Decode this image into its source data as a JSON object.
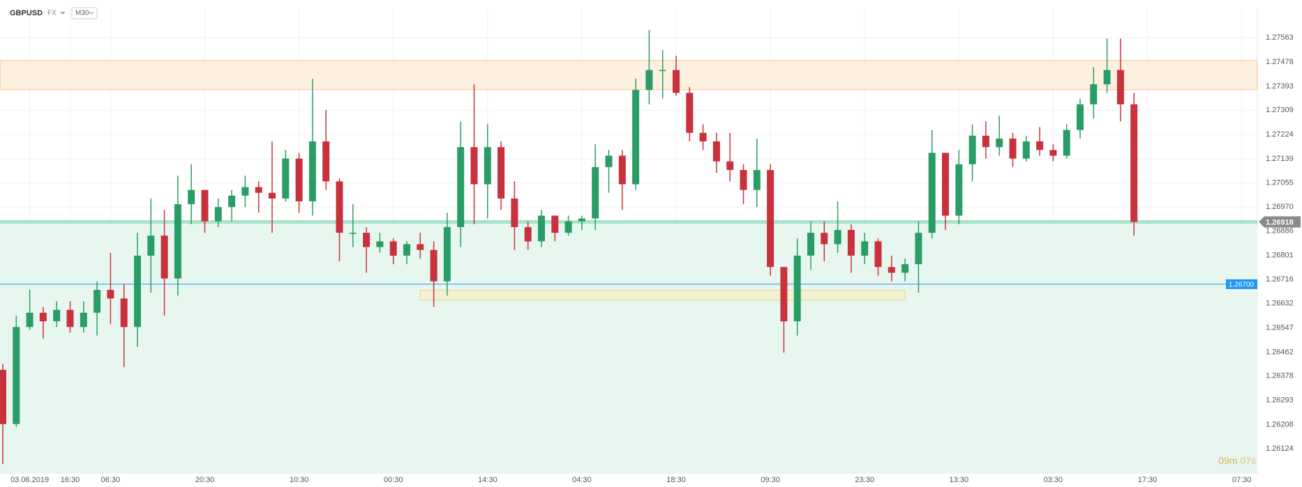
{
  "chart_data": {
    "type": "candlestick",
    "symbol": "GBPUSD",
    "market": "FX",
    "timeframe": "M30",
    "categories": [
      null,
      null,
      "03.06.2019",
      null,
      null,
      "16:30",
      null,
      null,
      "06:30",
      null,
      null,
      null,
      null,
      null,
      null,
      "20:30",
      null,
      null,
      null,
      null,
      null,
      null,
      "10:30",
      null,
      null,
      null,
      null,
      null,
      null,
      "00:30",
      null,
      null,
      null,
      null,
      null,
      null,
      "14:30",
      null,
      null,
      null,
      null,
      null,
      null,
      "04:30",
      null,
      null,
      null,
      null,
      null,
      null,
      "18:30",
      null,
      null,
      null,
      null,
      null,
      null,
      "09:30",
      null,
      null,
      null,
      null,
      null,
      null,
      "23:30",
      null,
      null,
      null,
      null,
      null,
      null,
      "13:30",
      null,
      null,
      null,
      null,
      null,
      null,
      "03:30",
      null,
      null,
      null,
      null,
      null,
      null,
      "17:30",
      null,
      null,
      null,
      null,
      null,
      null,
      "07:30"
    ],
    "open": [
      1.264,
      1.2621,
      1.2655,
      1.266,
      1.2657,
      1.2661,
      1.2655,
      1.266,
      1.2668,
      1.2665,
      1.2655,
      1.268,
      1.2687,
      1.2672,
      1.2698,
      1.2703,
      1.2692,
      1.2697,
      1.2701,
      1.2704,
      1.2702,
      1.27,
      1.2714,
      1.2699,
      1.272,
      1.2706,
      1.2688,
      1.2688,
      1.2683,
      1.2685,
      1.268,
      1.2684,
      1.2682,
      1.2671,
      1.269,
      1.2718,
      1.2705,
      1.2718,
      1.27,
      1.269,
      1.2685,
      1.2694,
      1.2688,
      1.2692,
      1.2693,
      1.2711,
      1.2715,
      1.2705,
      1.2738,
      1.2745,
      1.2745,
      1.2737,
      1.2723,
      1.272,
      1.2713,
      1.271,
      1.2703,
      1.271,
      1.2676,
      1.2657,
      1.268,
      1.2688,
      1.2684,
      1.2689,
      1.268,
      1.2685,
      1.2676,
      1.2674,
      1.2677,
      1.2688,
      1.2716,
      1.2694,
      1.2712,
      1.2722,
      1.2718,
      1.2721,
      1.2714,
      1.272,
      1.2717,
      1.2715,
      1.2724,
      1.2733,
      1.274,
      1.2745,
      1.2733,
      null,
      null,
      null,
      null,
      null,
      null,
      null,
      null
    ],
    "high": [
      1.2642,
      1.2659,
      1.2668,
      1.2662,
      1.2664,
      1.2664,
      1.2664,
      1.2671,
      1.2681,
      1.267,
      1.2688,
      1.27,
      1.2696,
      1.2708,
      1.2712,
      1.2703,
      1.27,
      1.2703,
      1.2708,
      1.2706,
      1.272,
      1.2717,
      1.2716,
      1.2742,
      1.2731,
      1.2707,
      1.2698,
      1.269,
      1.2688,
      1.2686,
      1.2685,
      1.2688,
      1.2685,
      1.2695,
      1.2727,
      1.274,
      1.2726,
      1.272,
      1.2706,
      1.2692,
      1.2696,
      1.2694,
      1.2694,
      1.2694,
      1.2719,
      1.2717,
      1.2717,
      1.2742,
      1.2759,
      1.2752,
      1.275,
      1.2739,
      1.2726,
      1.2723,
      1.2723,
      1.2712,
      1.2721,
      1.2712,
      1.2676,
      1.2686,
      1.2692,
      1.2692,
      1.2699,
      1.2691,
      1.2688,
      1.2686,
      1.268,
      1.2679,
      1.2692,
      1.2724,
      1.2716,
      1.2717,
      1.2726,
      1.2727,
      1.2729,
      1.2723,
      1.2722,
      1.2725,
      1.2719,
      1.2726,
      1.2735,
      1.2746,
      1.2756,
      1.2756,
      1.2737,
      null,
      null,
      null,
      null,
      null,
      null,
      null,
      null
    ],
    "low": [
      1.2607,
      1.262,
      1.2654,
      1.2651,
      1.2655,
      1.2653,
      1.2653,
      1.2652,
      1.2656,
      1.2641,
      1.2648,
      1.2667,
      1.2659,
      1.2666,
      1.2691,
      1.2688,
      1.269,
      1.2692,
      1.2697,
      1.2695,
      1.2688,
      1.2699,
      1.2695,
      1.2694,
      1.2703,
      1.2678,
      1.2683,
      1.2674,
      1.2681,
      1.2677,
      1.2677,
      1.2679,
      1.2662,
      1.2666,
      1.2683,
      1.2691,
      1.2693,
      1.2696,
      1.2682,
      1.2682,
      1.2683,
      1.2685,
      1.2687,
      1.2689,
      1.2689,
      1.2702,
      1.2696,
      1.2703,
      1.2733,
      1.2735,
      1.2736,
      1.272,
      1.2717,
      1.2709,
      1.2706,
      1.2698,
      1.2697,
      1.2673,
      1.2646,
      1.2652,
      1.2675,
      1.2678,
      1.2681,
      1.2674,
      1.2677,
      1.2673,
      1.2671,
      1.2671,
      1.2667,
      1.2686,
      1.2689,
      1.2691,
      1.2706,
      1.2714,
      1.2715,
      1.2711,
      1.2713,
      1.2715,
      1.2713,
      1.2714,
      1.2721,
      1.2728,
      1.2737,
      1.2727,
      1.2687,
      null,
      null,
      null,
      null,
      null,
      null,
      null,
      null
    ],
    "close": [
      1.2621,
      1.2655,
      1.266,
      1.2657,
      1.2661,
      1.2655,
      1.266,
      1.2668,
      1.2665,
      1.2655,
      1.268,
      1.2687,
      1.2672,
      1.2698,
      1.2703,
      1.2692,
      1.2697,
      1.2701,
      1.2704,
      1.2702,
      1.27,
      1.2714,
      1.2699,
      1.272,
      1.2706,
      1.2688,
      1.2688,
      1.2683,
      1.2685,
      1.268,
      1.2684,
      1.2682,
      1.2671,
      1.269,
      1.2718,
      1.2705,
      1.2718,
      1.27,
      1.269,
      1.2685,
      1.2694,
      1.2688,
      1.2692,
      1.2693,
      1.2711,
      1.2715,
      1.2705,
      1.2738,
      1.2745,
      1.2745,
      1.2737,
      1.2723,
      1.272,
      1.2713,
      1.271,
      1.2703,
      1.271,
      1.2676,
      1.2657,
      1.268,
      1.2688,
      1.2684,
      1.2689,
      1.268,
      1.2685,
      1.2676,
      1.2674,
      1.2677,
      1.2688,
      1.2716,
      1.2694,
      1.2712,
      1.2722,
      1.2718,
      1.2721,
      1.2714,
      1.272,
      1.2717,
      1.2715,
      1.2724,
      1.2733,
      1.274,
      1.2745,
      1.2733,
      1.26918,
      null,
      null,
      null,
      null,
      null,
      null,
      null,
      null
    ],
    "up_color": "#2a9d66",
    "down_color": "#c9313d",
    "ylim": [
      1.26036,
      1.27666
    ],
    "yticks": [
      1.27563,
      1.27478,
      1.27393,
      1.27309,
      1.27224,
      1.27139,
      1.27055,
      {
        "value": 1.2697,
        "label": "1.26970"
      },
      1.26886,
      1.26801,
      1.26716,
      1.26632,
      1.26547,
      1.26462,
      1.26378,
      1.26293,
      1.26208,
      1.26124
    ],
    "grid": true,
    "resistance_zone": [
      1.27381,
      1.27484
    ],
    "support_box": {
      "x": [
        31,
        67
      ],
      "y": [
        1.26644,
        1.26679
      ]
    },
    "price_line": {
      "value": 1.267,
      "label": "1.26700",
      "color": "#2196f3"
    },
    "last_price": 1.26918,
    "countdown": [
      "09m",
      "07s"
    ]
  }
}
